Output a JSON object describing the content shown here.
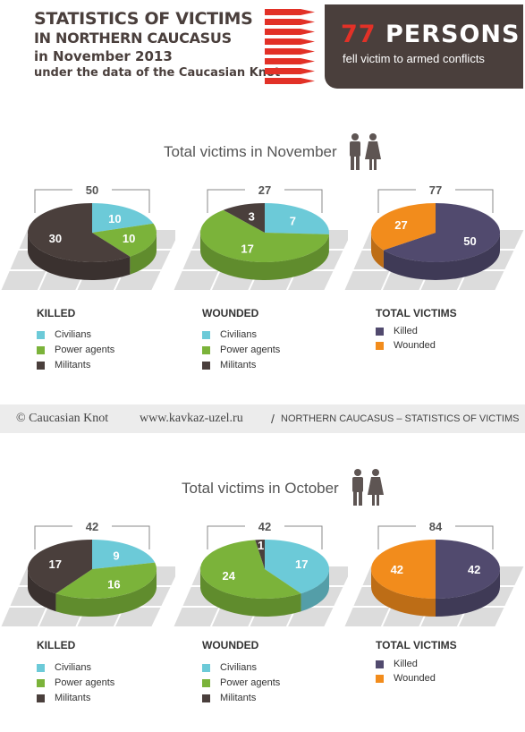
{
  "header": {
    "line1": "STATISTICS OF VICTIMS",
    "line2": "IN NORTHERN CAUCASUS",
    "line3": "in November 2013",
    "line4": "under the data of the Caucasian Knot",
    "badge_number": "77",
    "badge_word": "PERSONS",
    "badge_caption": "fell victim to armed conflicts"
  },
  "footer": {
    "copyright": "© Caucasian Knot",
    "url": "www.kavkaz-uzel.ru",
    "separator": "/",
    "tagline": "NORTHERN CAUCASUS – STATISTICS OF VICTIMS"
  },
  "colors": {
    "civilians": "#6ccad8",
    "power_agents": "#7bb33a",
    "militants": "#4a3f3c",
    "killed_total": "#514a6e",
    "wounded_total": "#f28c1c",
    "badge_bg": "#4a3f3c",
    "badge_number": "#e23127"
  },
  "sections": [
    {
      "title": "Total victims in November",
      "charts": [
        {
          "label": "KILLED",
          "total": "50",
          "legend": [
            "Civilians",
            "Power agents",
            "Militants"
          ]
        },
        {
          "label": "WOUNDED",
          "total": "27",
          "legend": [
            "Civilians",
            "Power agents",
            "Militants"
          ]
        },
        {
          "label": "TOTAL VICTIMS",
          "total": "77",
          "legend": [
            "Killed",
            "Wounded"
          ]
        }
      ]
    },
    {
      "title": "Total victims in October",
      "charts": [
        {
          "label": "KILLED",
          "total": "42",
          "legend": [
            "Civilians",
            "Power agents",
            "Militants"
          ]
        },
        {
          "label": "WOUNDED",
          "total": "42",
          "legend": [
            "Civilians",
            "Power agents",
            "Militants"
          ]
        },
        {
          "label": "TOTAL VICTIMS",
          "total": "84",
          "legend": [
            "Killed",
            "Wounded"
          ]
        }
      ]
    }
  ],
  "chart_data": [
    {
      "type": "pie",
      "title": "KILLED",
      "period": "November",
      "total": 50,
      "categories": [
        "Civilians",
        "Power agents",
        "Militants"
      ],
      "values": [
        10,
        10,
        30
      ],
      "colors": [
        "#6ccad8",
        "#7bb33a",
        "#4a3f3c"
      ]
    },
    {
      "type": "pie",
      "title": "WOUNDED",
      "period": "November",
      "total": 27,
      "categories": [
        "Civilians",
        "Power agents",
        "Militants"
      ],
      "values": [
        7,
        17,
        3
      ],
      "colors": [
        "#6ccad8",
        "#7bb33a",
        "#4a3f3c"
      ]
    },
    {
      "type": "pie",
      "title": "TOTAL VICTIMS",
      "period": "November",
      "total": 77,
      "categories": [
        "Killed",
        "Wounded"
      ],
      "values": [
        50,
        27
      ],
      "colors": [
        "#514a6e",
        "#f28c1c"
      ]
    },
    {
      "type": "pie",
      "title": "KILLED",
      "period": "October",
      "total": 42,
      "categories": [
        "Civilians",
        "Power agents",
        "Militants"
      ],
      "values": [
        9,
        16,
        17
      ],
      "colors": [
        "#6ccad8",
        "#7bb33a",
        "#4a3f3c"
      ]
    },
    {
      "type": "pie",
      "title": "WOUNDED",
      "period": "October",
      "total": 42,
      "categories": [
        "Civilians",
        "Power agents",
        "Militants"
      ],
      "values": [
        17,
        24,
        1
      ],
      "colors": [
        "#6ccad8",
        "#7bb33a",
        "#4a3f3c"
      ]
    },
    {
      "type": "pie",
      "title": "TOTAL VICTIMS",
      "period": "October",
      "total": 84,
      "categories": [
        "Killed",
        "Wounded"
      ],
      "values": [
        42,
        42
      ],
      "colors": [
        "#514a6e",
        "#f28c1c"
      ]
    }
  ]
}
